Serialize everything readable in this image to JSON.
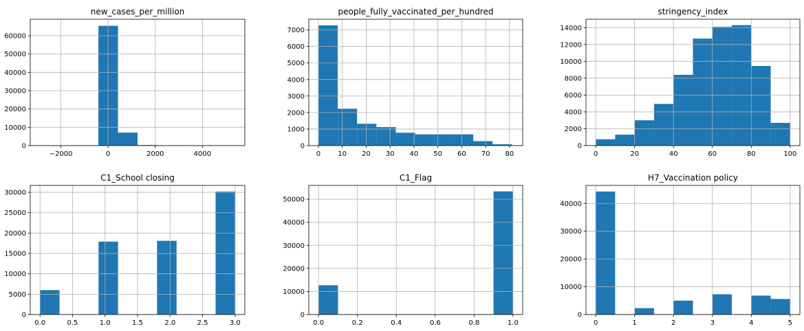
{
  "chart_data": [
    {
      "type": "bar",
      "title": "new_cases_per_million",
      "xlim": [
        -3300,
        5800
      ],
      "ylim": [
        0,
        69000
      ],
      "xticks": [
        -2000,
        0,
        2000,
        4000
      ],
      "xtick_labels": [
        "−2000",
        "0",
        "2000",
        "4000"
      ],
      "yticks": [
        0,
        10000,
        20000,
        30000,
        40000,
        50000,
        60000
      ],
      "ytick_labels": [
        "0",
        "10000",
        "20000",
        "30000",
        "40000",
        "50000",
        "60000"
      ],
      "grid": true,
      "bins": [
        [
          -2900,
          -2070,
          0
        ],
        [
          -2070,
          -1240,
          0
        ],
        [
          -1240,
          -410,
          50
        ],
        [
          -410,
          420,
          65400
        ],
        [
          420,
          1250,
          7100
        ],
        [
          1250,
          2080,
          300
        ],
        [
          2080,
          2910,
          50
        ],
        [
          2910,
          3740,
          20
        ],
        [
          3740,
          4570,
          10
        ],
        [
          4570,
          5400,
          5
        ]
      ]
    },
    {
      "type": "bar",
      "title": "people_fully_vaccinated_per_hundred",
      "xlim": [
        -4,
        85.5
      ],
      "ylim": [
        0,
        7650
      ],
      "xticks": [
        0,
        10,
        20,
        30,
        40,
        50,
        60,
        70,
        80
      ],
      "xtick_labels": [
        "0",
        "10",
        "20",
        "30",
        "40",
        "50",
        "60",
        "70",
        "80"
      ],
      "yticks": [
        0,
        1000,
        2000,
        3000,
        4000,
        5000,
        6000,
        7000
      ],
      "ytick_labels": [
        "0",
        "1000",
        "2000",
        "3000",
        "4000",
        "5000",
        "6000",
        "7000"
      ],
      "grid": true,
      "bins": [
        [
          0,
          8.1,
          7280
        ],
        [
          8.1,
          16.2,
          2230
        ],
        [
          16.2,
          24.3,
          1320
        ],
        [
          24.3,
          32.4,
          1120
        ],
        [
          32.4,
          40.5,
          780
        ],
        [
          40.5,
          48.6,
          680
        ],
        [
          48.6,
          56.7,
          680
        ],
        [
          56.7,
          64.8,
          680
        ],
        [
          64.8,
          72.9,
          270
        ],
        [
          72.9,
          81,
          80
        ]
      ]
    },
    {
      "type": "bar",
      "title": "stringency_index",
      "xlim": [
        -5,
        105
      ],
      "ylim": [
        0,
        15000
      ],
      "xticks": [
        0,
        20,
        40,
        60,
        80,
        100
      ],
      "xtick_labels": [
        "0",
        "20",
        "40",
        "60",
        "80",
        "100"
      ],
      "yticks": [
        0,
        2000,
        4000,
        6000,
        8000,
        10000,
        12000,
        14000
      ],
      "ytick_labels": [
        "0",
        "2000",
        "4000",
        "6000",
        "8000",
        "10000",
        "12000",
        "14000"
      ],
      "grid": true,
      "bins": [
        [
          0,
          10,
          750
        ],
        [
          10,
          20,
          1300
        ],
        [
          20,
          30,
          3000
        ],
        [
          30,
          40,
          4950
        ],
        [
          40,
          50,
          8400
        ],
        [
          50,
          60,
          12700
        ],
        [
          60,
          70,
          14100
        ],
        [
          70,
          80,
          14300
        ],
        [
          80,
          90,
          9450
        ],
        [
          90,
          100,
          2700
        ]
      ]
    },
    {
      "type": "bar",
      "title": "C1_School closing",
      "xlim": [
        -0.15,
        3.15
      ],
      "ylim": [
        0,
        31700
      ],
      "xticks": [
        0,
        0.5,
        1,
        1.5,
        2,
        2.5,
        3
      ],
      "xtick_labels": [
        "0.0",
        "0.5",
        "1.0",
        "1.5",
        "2.0",
        "2.5",
        "3.0"
      ],
      "yticks": [
        0,
        5000,
        10000,
        15000,
        20000,
        25000,
        30000
      ],
      "ytick_labels": [
        "0",
        "5000",
        "10000",
        "15000",
        "20000",
        "25000",
        "30000"
      ],
      "grid": true,
      "bins": [
        [
          0,
          0.3,
          6000
        ],
        [
          0.9,
          1.2,
          17900
        ],
        [
          1.8,
          2.1,
          18100
        ],
        [
          2.7,
          3,
          30200
        ]
      ]
    },
    {
      "type": "bar",
      "title": "C1_Flag",
      "xlim": [
        -0.05,
        1.05
      ],
      "ylim": [
        0,
        56000
      ],
      "xticks": [
        0,
        0.2,
        0.4,
        0.6,
        0.8,
        1
      ],
      "xtick_labels": [
        "0.0",
        "0.2",
        "0.4",
        "0.6",
        "0.8",
        "1.0"
      ],
      "yticks": [
        0,
        10000,
        20000,
        30000,
        40000,
        50000
      ],
      "ytick_labels": [
        "0",
        "10000",
        "20000",
        "30000",
        "40000",
        "50000"
      ],
      "grid": true,
      "bins": [
        [
          0,
          0.1,
          12700
        ],
        [
          0.9,
          1,
          53400
        ]
      ]
    },
    {
      "type": "bar",
      "title": "H7_Vaccination policy",
      "xlim": [
        -0.25,
        5.25
      ],
      "ylim": [
        0,
        46500
      ],
      "xticks": [
        0,
        1,
        2,
        3,
        4,
        5
      ],
      "xtick_labels": [
        "0",
        "1",
        "2",
        "3",
        "4",
        "5"
      ],
      "yticks": [
        0,
        10000,
        20000,
        30000,
        40000
      ],
      "ytick_labels": [
        "0",
        "10000",
        "20000",
        "30000",
        "40000"
      ],
      "grid": true,
      "bins": [
        [
          0,
          0.5,
          44300
        ],
        [
          1,
          1.5,
          2300
        ],
        [
          2,
          2.5,
          5000
        ],
        [
          3,
          3.5,
          7300
        ],
        [
          4,
          4.5,
          6800
        ],
        [
          4.5,
          5,
          5600
        ]
      ]
    }
  ],
  "colors": {
    "bar": "#1f77b4",
    "grid": "#b0b0b0",
    "axis": "#000000"
  }
}
